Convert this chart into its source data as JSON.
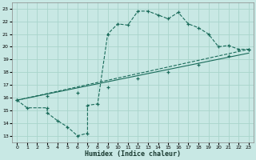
{
  "xlabel": "Humidex (Indice chaleur)",
  "xlim": [
    -0.5,
    23.5
  ],
  "ylim": [
    12.5,
    23.5
  ],
  "xticks": [
    0,
    1,
    2,
    3,
    4,
    5,
    6,
    7,
    8,
    9,
    10,
    11,
    12,
    13,
    14,
    15,
    16,
    17,
    18,
    19,
    20,
    21,
    22,
    23
  ],
  "yticks": [
    13,
    14,
    15,
    16,
    17,
    18,
    19,
    20,
    21,
    22,
    23
  ],
  "bg_color": "#c8e8e4",
  "line_color": "#1a6b5a",
  "grid_color": "#a8d4cc",
  "line1_x": [
    0,
    1,
    3,
    3,
    4,
    5,
    6,
    7,
    7,
    8,
    9,
    10,
    11,
    12,
    13,
    14,
    15,
    16,
    17,
    18,
    19,
    20,
    21,
    22,
    23
  ],
  "line1_y": [
    15.8,
    15.2,
    15.2,
    14.8,
    14.2,
    13.7,
    13.0,
    13.2,
    15.4,
    15.5,
    21.0,
    21.8,
    21.7,
    22.8,
    22.8,
    22.5,
    22.2,
    22.7,
    21.8,
    21.5,
    21.0,
    20.0,
    20.1,
    19.8,
    19.8
  ],
  "line2_x": [
    0,
    23
  ],
  "line2_y": [
    15.8,
    19.8
  ],
  "line2_markers_x": [
    0,
    3,
    6,
    9,
    12,
    15,
    18,
    21,
    23
  ],
  "line2_markers_y": [
    15.8,
    16.1,
    16.4,
    16.8,
    17.5,
    18.0,
    18.6,
    19.3,
    19.8
  ],
  "line3_x": [
    0,
    23
  ],
  "line3_y": [
    15.8,
    19.5
  ],
  "line3_markers_x": [
    0,
    3,
    6,
    9,
    12,
    15,
    18,
    21,
    23
  ],
  "line3_markers_y": [
    15.8,
    16.0,
    16.3,
    16.6,
    17.2,
    17.7,
    18.3,
    19.0,
    19.5
  ]
}
